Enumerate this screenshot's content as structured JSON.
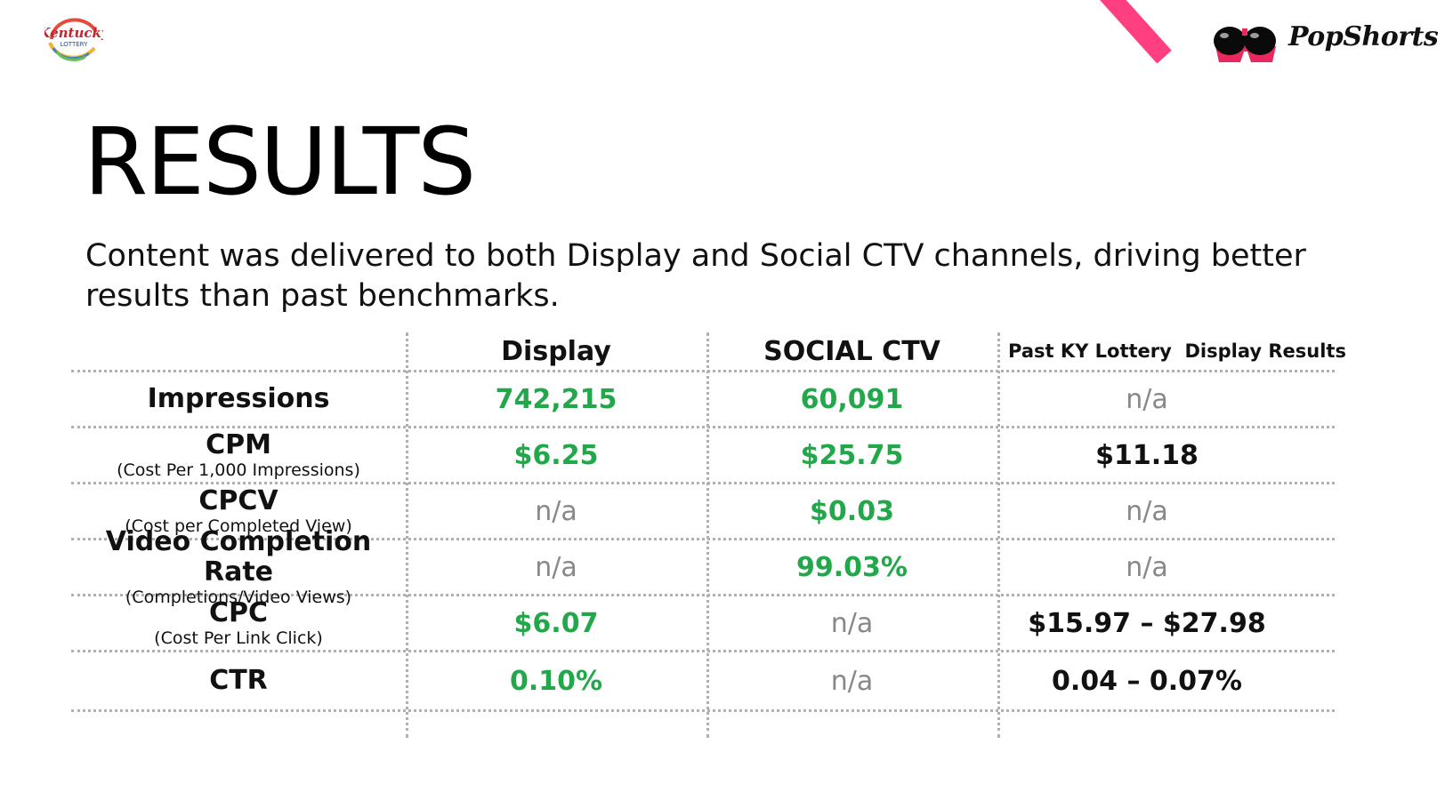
{
  "header": {
    "left_logo": {
      "line1": "Kentucky",
      "line2": "LOTTERY"
    },
    "right_logo": {
      "text": "PopShorts",
      "icon": "sunglasses-icon"
    },
    "accent_color": "#ff3f7f"
  },
  "title": "RESULTS",
  "subtitle": "Content was delivered to both Display and Social CTV channels, driving better results than past benchmarks.",
  "table": {
    "columns": [
      "Display",
      "SOCIAL CTV",
      "Past KY Lottery  Display Results"
    ],
    "rows": [
      {
        "name": "Impressions",
        "sub": "",
        "display": "742,215",
        "ctv": "60,091",
        "past": "n/a"
      },
      {
        "name": "CPM",
        "sub": "(Cost Per 1,000 Impressions)",
        "display": "$6.25",
        "ctv": "$25.75",
        "past": "$11.18"
      },
      {
        "name": "CPCV",
        "sub": "(Cost per Completed View)",
        "display": "n/a",
        "ctv": "$0.03",
        "past": "n/a"
      },
      {
        "name": "Video Completion Rate",
        "sub": "(Completions/Video Views)",
        "display": "n/a",
        "ctv": "99.03%",
        "past": "n/a"
      },
      {
        "name": "CPC",
        "sub": "(Cost Per Link Click)",
        "display": "$6.07",
        "ctv": "n/a",
        "past": "$15.97 – $27.98"
      },
      {
        "name": "CTR",
        "sub": "",
        "display": "0.10%",
        "ctv": "n/a",
        "past": "0.04 – 0.07%"
      }
    ],
    "colors": {
      "highlight": "#22a84a",
      "na": "#888888",
      "benchmark": "#111111"
    }
  }
}
